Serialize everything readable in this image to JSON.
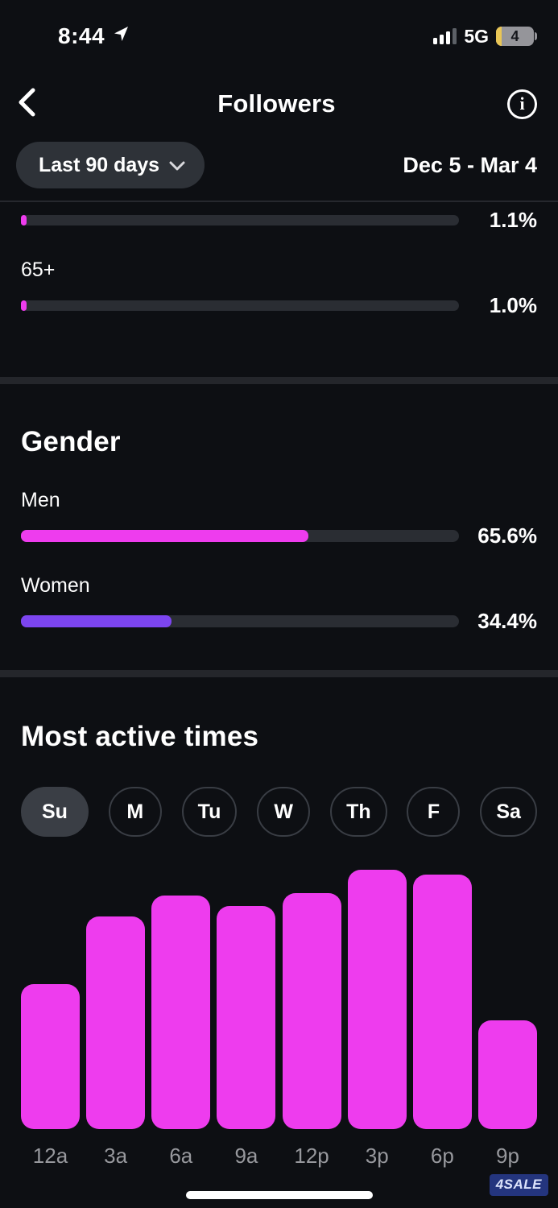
{
  "status_bar": {
    "time": "8:44",
    "network": "5G",
    "battery": "4"
  },
  "header": {
    "title": "Followers"
  },
  "filter": {
    "range_label": "Last 90 days",
    "date_range": "Dec 5 - Mar 4"
  },
  "age_section": {
    "rows": [
      {
        "label": "",
        "value": "1.1%",
        "pct": 1.1,
        "color": "#ee3cee"
      },
      {
        "label": "65+",
        "value": "1.0%",
        "pct": 1.0,
        "color": "#ee3cee"
      }
    ]
  },
  "gender_section": {
    "title": "Gender",
    "rows": [
      {
        "label": "Men",
        "value": "65.6%",
        "pct": 65.6,
        "color": "#ee3cee"
      },
      {
        "label": "Women",
        "value": "34.4%",
        "pct": 34.4,
        "color": "#7c45f0"
      }
    ]
  },
  "active_times": {
    "title": "Most active times",
    "days": [
      {
        "label": "Su",
        "selected": true
      },
      {
        "label": "M",
        "selected": false
      },
      {
        "label": "Tu",
        "selected": false
      },
      {
        "label": "W",
        "selected": false
      },
      {
        "label": "Th",
        "selected": false
      },
      {
        "label": "F",
        "selected": false
      },
      {
        "label": "Sa",
        "selected": false
      }
    ]
  },
  "chart_data": {
    "type": "bar",
    "title": "Most active times",
    "selected_day": "Su",
    "categories": [
      "12a",
      "3a",
      "6a",
      "9a",
      "12p",
      "3p",
      "6p",
      "9p"
    ],
    "values": [
      56,
      82,
      90,
      86,
      91,
      100,
      98,
      42
    ],
    "values_unit": "percent of peak activity (y-axis unlabeled in app)",
    "bar_color": "#ee3cee",
    "xlabel": "hour of day",
    "ylabel": "",
    "ylim": [
      0,
      100
    ],
    "grid": false,
    "legend": false
  },
  "footer": {
    "watermark": "4SALE"
  }
}
